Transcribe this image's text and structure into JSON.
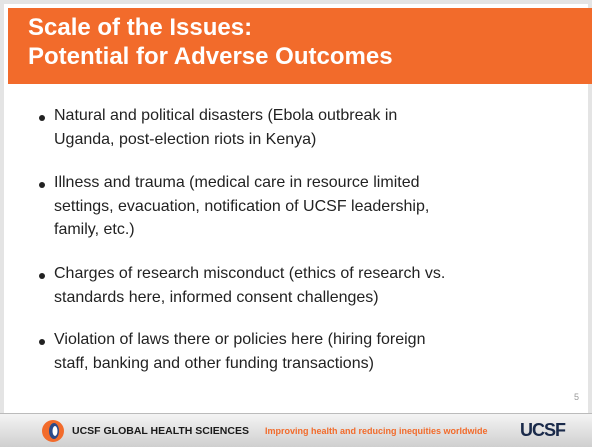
{
  "slide": {
    "title": [
      "Scale of the Issues:",
      "Potential for Adverse Outcomes"
    ],
    "bullets": [
      {
        "lines": [
          "Natural and political disasters (Ebola outbreak in",
          "Uganda, post-election riots in Kenya)"
        ]
      },
      {
        "lines": [
          "Illness and trauma (medical care in resource limited",
          "settings, evacuation, notification of UCSF leadership,",
          "family, etc.)"
        ]
      },
      {
        "lines": [
          "Charges of research misconduct (ethics of research vs.",
          "standards here, informed consent challenges)"
        ]
      },
      {
        "lines": [
          "Violation of laws there or policies here (hiring foreign",
          "staff, banking and other funding transactions)"
        ]
      }
    ],
    "page_number": "5",
    "footer": {
      "organization": "UCSF GLOBAL HEALTH SCIENCES",
      "tagline": "Improving health and reducing inequities worldwide",
      "logo": "UCSF"
    }
  }
}
